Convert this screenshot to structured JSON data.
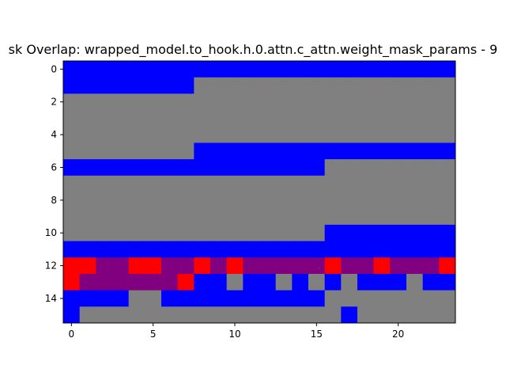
{
  "chart_data": {
    "type": "heatmap",
    "title": "sk Overlap: wrapped_model.to_hook.h.0.attn.c_attn.weight_mask_params - 9",
    "xlabel": "",
    "ylabel": "",
    "xlim": [
      -0.5,
      23.5
    ],
    "ylim": [
      15.5,
      -0.5
    ],
    "x_ticks": [
      0,
      5,
      10,
      15,
      20
    ],
    "y_ticks": [
      0,
      2,
      4,
      6,
      8,
      10,
      12,
      14
    ],
    "grid": false,
    "legend": "none",
    "palette": {
      "B": "#0000ff",
      "G": "#808080",
      "R": "#ff0000",
      "P": "#800080"
    },
    "rows": [
      "BBBBBBBBBBBBBBBBBBBBBBBB",
      "BBBBBBBBGGGGGGGGGGGGGGGG",
      "GGGGGGGGGGGGGGGGGGGGGGGG",
      "GGGGGGGGGGGGGGGGGGGGGGGG",
      "GGGGGGGGGGGGGGGGGGGGGGGG",
      "GGGGGGGGBBBBBBBBBBBBBBBB",
      "BBBBBBBBBBBBBBBBGGGGGGGG",
      "GGGGGGGGGGGGGGGGGGGGGGGG",
      "GGGGGGGGGGGGGGGGGGGGGGGG",
      "GGGGGGGGGGGGGGGGGGGGGGGG",
      "GGGGGGGGGGGGGGGGBBBBBBBB",
      "BBBBBBBBBBBBBBBBBBBBBBBB",
      "RRPPRRPPRPRPPPPPRPPRPPPR",
      "RPPPPPPRBBGBBGBGBGBBBGBB",
      "BBBBGGBBBBBBBBBBGGGGGGGG",
      "BGGGGGGGGGGGGGGGGBGGGGGG"
    ]
  }
}
